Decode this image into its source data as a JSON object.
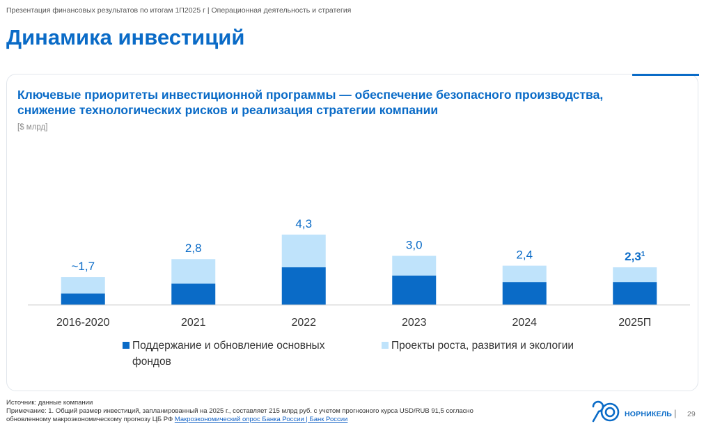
{
  "header": {
    "breadcrumb": "Презентация финансовых результатов по итогам 1П2025 г | Операционная деятельность и стратегия",
    "title": "Динамика инвестиций"
  },
  "card": {
    "heading_line1": "Ключевые приоритеты инвестиционной программы  — обеспечение безопасного производства,",
    "heading_line2": "снижение технологических рисков и реализация стратегии компании",
    "unit": "[$ млрд]"
  },
  "chart_data": {
    "type": "bar",
    "stacked": true,
    "categories": [
      "2016-2020",
      "2021",
      "2022",
      "2023",
      "2024",
      "2025П"
    ],
    "series": [
      {
        "name": "Поддержание и обновление основных фондов",
        "color": "#0a6bc7",
        "values": [
          0.7,
          1.3,
          2.3,
          1.8,
          1.4,
          1.4
        ]
      },
      {
        "name": "Проекты роста, развития и экологии",
        "color": "#bfe3fb",
        "values": [
          1.0,
          1.5,
          2.0,
          1.2,
          1.0,
          0.9
        ]
      }
    ],
    "totals": [
      "~1,7",
      "2,8",
      "4,3",
      "3,0",
      "2,4",
      "2,3"
    ],
    "total_superscripts": [
      "",
      "",
      "",
      "",
      "",
      "1"
    ],
    "total_bold": [
      false,
      false,
      false,
      false,
      false,
      true
    ],
    "ylim": [
      0,
      4.3
    ],
    "grid": false,
    "legend": "bottom",
    "unit": "$ млрд"
  },
  "legend": {
    "item1_line1": "Поддержание и обновление основных",
    "item1_line2": "фондов",
    "item2": "Проекты роста, развития и экологии"
  },
  "footer": {
    "source": "Источник: данные компании",
    "note_line1": "Примечание: 1. Общий размер инвестиций, запланированный на 2025 г., составляет 215 млрд руб. с учетом прогнозного курса USD/RUB 91,5 согласно",
    "note_line2_prefix": "обновленному макроэкономическому прогнозу ЦБ РФ ",
    "note_link": "Макроэкономический опрос Банка России | Банк России",
    "brand": "НОРНИКЕЛЬ",
    "separator": "|",
    "page_number": "29"
  },
  "colors": {
    "accent": "#0a6bc7",
    "light": "#bfe3fb"
  }
}
